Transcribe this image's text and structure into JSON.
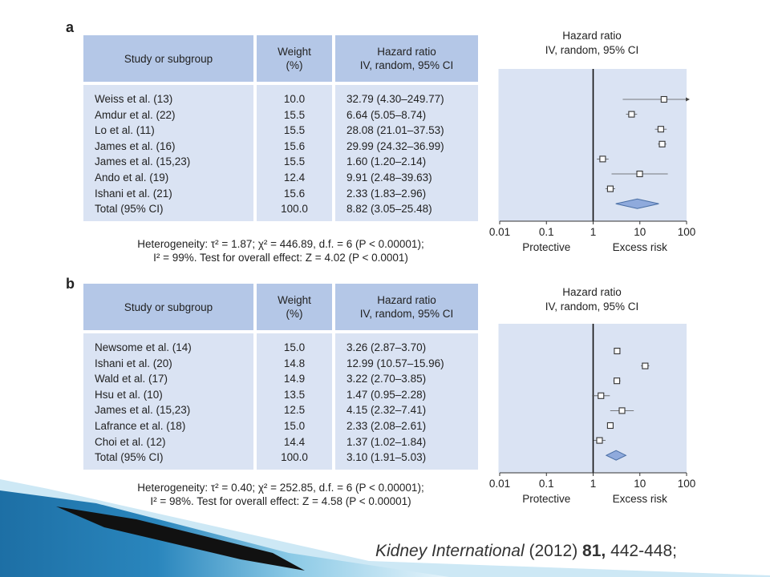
{
  "col_headers": {
    "study": "Study or subgroup",
    "weight_l1": "Weight",
    "weight_l2": "(%)",
    "hr_l1": "Hazard ratio",
    "hr_l2": "IV, random, 95% CI"
  },
  "plot_titles": {
    "line1": "Hazard ratio",
    "line2": "IV, random, 95% CI"
  },
  "axis": {
    "ticks": [
      "0.01",
      "0.1",
      "1",
      "10",
      "100"
    ],
    "left_label": "Protective",
    "right_label": "Excess risk"
  },
  "panel_a": {
    "letter": "a",
    "heterogeneity_line1": "Heterogeneity: τ² = 1.87; χ² = 446.89, d.f. = 6 (P < 0.00001);",
    "heterogeneity_line2": "I² = 99%. Test for overall effect: Z = 4.02 (P < 0.0001)",
    "rows": [
      {
        "study": "Weiss et al. (13)",
        "weight": "10.0",
        "hr": "32.79 (4.30–249.77)"
      },
      {
        "study": "Amdur et al. (22)",
        "weight": "15.5",
        "hr": "6.64 (5.05–8.74)"
      },
      {
        "study": "Lo et al. (11)",
        "weight": "15.5",
        "hr": "28.08 (21.01–37.53)"
      },
      {
        "study": "James et al. (16)",
        "weight": "15.6",
        "hr": "29.99 (24.32–36.99)"
      },
      {
        "study": "James et al. (15,23)",
        "weight": "15.5",
        "hr": "1.60 (1.20–2.14)"
      },
      {
        "study": "Ando et al. (19)",
        "weight": "12.4",
        "hr": "9.91 (2.48–39.63)"
      },
      {
        "study": "Ishani et al. (21)",
        "weight": "15.6",
        "hr": "2.33 (1.83–2.96)"
      },
      {
        "study": "Total (95% CI)",
        "weight": "100.0",
        "hr": "8.82 (3.05–25.48)"
      }
    ]
  },
  "panel_b": {
    "letter": "b",
    "heterogeneity_line1": "Heterogeneity: τ² = 0.40; χ² = 252.85, d.f. = 6 (P < 0.00001);",
    "heterogeneity_line2": "I² = 98%. Test for overall effect: Z = 4.58 (P < 0.00001)",
    "rows": [
      {
        "study": "Newsome et al. (14)",
        "weight": "15.0",
        "hr": "3.26 (2.87–3.70)"
      },
      {
        "study": "Ishani et al. (20)",
        "weight": "14.8",
        "hr": "12.99 (10.57–15.96)"
      },
      {
        "study": "Wald et al. (17)",
        "weight": "14.9",
        "hr": "3.22 (2.70–3.85)"
      },
      {
        "study": "Hsu et al. (10)",
        "weight": "13.5",
        "hr": "1.47 (0.95–2.28)"
      },
      {
        "study": "James et al. (15,23)",
        "weight": "12.5",
        "hr": "4.15 (2.32–7.41)"
      },
      {
        "study": "Lafrance et al. (18)",
        "weight": "15.0",
        "hr": "2.33 (2.08–2.61)"
      },
      {
        "study": "Choi et al. (12)",
        "weight": "14.4",
        "hr": "1.37 (1.02–1.84)"
      },
      {
        "study": "Total (95% CI)",
        "weight": "100.0",
        "hr": "3.10 (1.91–5.03)"
      }
    ]
  },
  "citation": {
    "journal": "Kidney International",
    "year": "(2012)",
    "volume": "81,",
    "pages": "442-448;"
  },
  "colors": {
    "header": "#b4c7e7",
    "body": "#dae3f3",
    "diamond": "#8faadc",
    "plot_bg": "#dae3f3"
  },
  "chart_data": [
    {
      "type": "forest",
      "title": "Hazard ratio",
      "subtitle": "IV, random, 95% CI",
      "x_scale": "log",
      "xlim": [
        0.01,
        100
      ],
      "xticks": [
        0.01,
        0.1,
        1,
        10,
        100
      ],
      "reference_line": 1,
      "xlabel_left": "Protective",
      "xlabel_right": "Excess risk",
      "studies": [
        {
          "study": "Weiss et al. (13)",
          "weight": 10.0,
          "hr": 32.79,
          "lo": 4.3,
          "hi": 249.77
        },
        {
          "study": "Amdur et al. (22)",
          "weight": 15.5,
          "hr": 6.64,
          "lo": 5.05,
          "hi": 8.74
        },
        {
          "study": "Lo et al. (11)",
          "weight": 15.5,
          "hr": 28.08,
          "lo": 21.01,
          "hi": 37.53
        },
        {
          "study": "James et al. (16)",
          "weight": 15.6,
          "hr": 29.99,
          "lo": 24.32,
          "hi": 36.99
        },
        {
          "study": "James et al. (15,23)",
          "weight": 15.5,
          "hr": 1.6,
          "lo": 1.2,
          "hi": 2.14
        },
        {
          "study": "Ando et al. (19)",
          "weight": 12.4,
          "hr": 9.91,
          "lo": 2.48,
          "hi": 39.63
        },
        {
          "study": "Ishani et al. (21)",
          "weight": 15.6,
          "hr": 2.33,
          "lo": 1.83,
          "hi": 2.96
        }
      ],
      "total": {
        "hr": 8.82,
        "lo": 3.05,
        "hi": 25.48
      }
    },
    {
      "type": "forest",
      "title": "Hazard ratio",
      "subtitle": "IV, random, 95% CI",
      "x_scale": "log",
      "xlim": [
        0.01,
        100
      ],
      "xticks": [
        0.01,
        0.1,
        1,
        10,
        100
      ],
      "reference_line": 1,
      "xlabel_left": "Protective",
      "xlabel_right": "Excess risk",
      "studies": [
        {
          "study": "Newsome et al. (14)",
          "weight": 15.0,
          "hr": 3.26,
          "lo": 2.87,
          "hi": 3.7
        },
        {
          "study": "Ishani et al. (20)",
          "weight": 14.8,
          "hr": 12.99,
          "lo": 10.57,
          "hi": 15.96
        },
        {
          "study": "Wald et al. (17)",
          "weight": 14.9,
          "hr": 3.22,
          "lo": 2.7,
          "hi": 3.85
        },
        {
          "study": "Hsu et al. (10)",
          "weight": 13.5,
          "hr": 1.47,
          "lo": 0.95,
          "hi": 2.28
        },
        {
          "study": "James et al. (15,23)",
          "weight": 12.5,
          "hr": 4.15,
          "lo": 2.32,
          "hi": 7.41
        },
        {
          "study": "Lafrance et al. (18)",
          "weight": 15.0,
          "hr": 2.33,
          "lo": 2.08,
          "hi": 2.61
        },
        {
          "study": "Choi et al. (12)",
          "weight": 14.4,
          "hr": 1.37,
          "lo": 1.02,
          "hi": 1.84
        }
      ],
      "total": {
        "hr": 3.1,
        "lo": 1.91,
        "hi": 5.03
      }
    }
  ]
}
